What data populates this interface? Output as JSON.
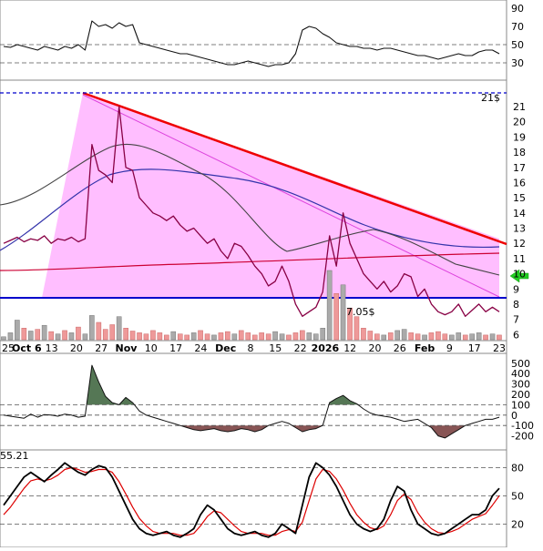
{
  "chart_data": [
    {
      "type": "line",
      "panel": "rsi",
      "y_ticks": [
        "90",
        "70",
        "50",
        "30"
      ],
      "ylim": [
        15,
        95
      ],
      "reference_lines": [
        50,
        30
      ],
      "series": [
        {
          "values": [
            48,
            47,
            50,
            48,
            46,
            44,
            48,
            46,
            44,
            48,
            46,
            50,
            44,
            76,
            70,
            72,
            68,
            74,
            70,
            72,
            52,
            50,
            48,
            46,
            44,
            42,
            40,
            40,
            38,
            36,
            34,
            32,
            30,
            28,
            28,
            30,
            32,
            30,
            28,
            26,
            28,
            28,
            30,
            40,
            66,
            70,
            68,
            62,
            58,
            52,
            50,
            48,
            48,
            46,
            46,
            44,
            46,
            46,
            44,
            42,
            40,
            38,
            38,
            36,
            34,
            36,
            38,
            40,
            38,
            38,
            42,
            44,
            44,
            40
          ]
        }
      ]
    },
    {
      "type": "line",
      "panel": "price",
      "y_ticks": [
        "21",
        "20",
        "19",
        "18",
        "17",
        "16",
        "15",
        "14",
        "13",
        "12",
        "11",
        "10",
        "9",
        "8",
        "7",
        "6"
      ],
      "ylim": [
        5,
        22.5
      ],
      "annotations": [
        {
          "text": "21$",
          "value": 21
        },
        {
          "text": "7.05$",
          "value": 7.05
        }
      ],
      "x_ticks": [
        "25",
        "Oct 6",
        "13",
        "20",
        "27",
        "Nov",
        "10",
        "17",
        "24",
        "Dec",
        "8",
        "15",
        "22",
        "2026",
        "12",
        "20",
        "26",
        "Feb",
        "9",
        "17",
        "23"
      ],
      "series": [
        {
          "values": [
            12.0,
            12.2,
            12.4,
            12.1,
            12.3,
            12.2,
            12.5,
            12.0,
            12.3,
            12.2,
            12.4,
            12.1,
            12.3,
            18.5,
            16.8,
            16.5,
            16.0,
            21.0,
            17.0,
            16.8,
            15.0,
            14.5,
            14.0,
            13.8,
            13.5,
            13.8,
            13.2,
            12.8,
            13.0,
            12.5,
            12.0,
            12.3,
            11.5,
            11.0,
            12.0,
            11.8,
            11.2,
            10.5,
            10.0,
            9.2,
            9.5,
            10.5,
            9.5,
            8.0,
            7.2,
            7.5,
            7.8,
            8.8,
            12.5,
            10.5,
            14.0,
            12.0,
            11.0,
            10.0,
            9.5,
            9.0,
            9.5,
            8.8,
            9.2,
            10.0,
            9.8,
            8.5,
            9.0,
            8.0,
            7.5,
            7.3,
            7.5,
            8.0,
            7.2,
            7.6,
            8.0,
            7.5,
            7.8,
            7.5
          ]
        }
      ]
    },
    {
      "type": "bar",
      "panel": "volume",
      "series": [
        {
          "values": [
            0.5,
            1.2,
            3.4,
            2.0,
            1.5,
            1.8,
            2.5,
            1.4,
            1.0,
            1.6,
            1.2,
            2.2,
            1.0,
            4.2,
            3.0,
            1.8,
            2.6,
            4.0,
            2.0,
            1.5,
            1.2,
            1.0,
            1.6,
            1.2,
            0.8,
            1.4,
            1.0,
            0.8,
            1.2,
            1.6,
            1.0,
            0.8,
            1.2,
            1.4,
            1.0,
            1.6,
            1.2,
            0.8,
            1.2,
            1.0,
            1.4,
            1.0,
            0.8,
            1.2,
            1.6,
            1.2,
            1.0,
            2.0,
            12.0,
            8.0,
            9.5,
            5.5,
            4.0,
            2.0,
            1.5,
            1.0,
            0.8,
            1.2,
            1.6,
            1.8,
            1.2,
            1.0,
            0.8,
            1.2,
            1.4,
            1.0,
            0.8,
            1.2,
            0.8,
            1.0,
            1.2,
            0.8,
            1.0,
            0.8
          ]
        }
      ]
    },
    {
      "type": "area",
      "panel": "cci",
      "y_ticks": [
        "500",
        "400",
        "300",
        "200",
        "100",
        "0",
        "-100",
        "-200"
      ],
      "ylim": [
        -300,
        560
      ],
      "reference_lines": [
        100,
        0,
        -100
      ],
      "series": [
        {
          "values": [
            0,
            -10,
            -20,
            -30,
            10,
            -20,
            5,
            0,
            -10,
            10,
            0,
            -20,
            -10,
            480,
            320,
            180,
            120,
            100,
            170,
            120,
            40,
            0,
            -20,
            -40,
            -60,
            -80,
            -100,
            -120,
            -140,
            -150,
            -140,
            -130,
            -150,
            -160,
            -150,
            -130,
            -140,
            -160,
            -140,
            -100,
            -80,
            -60,
            -80,
            -120,
            -160,
            -140,
            -130,
            -100,
            120,
            160,
            190,
            140,
            110,
            60,
            20,
            0,
            -10,
            -20,
            -40,
            -60,
            -50,
            -40,
            -80,
            -120,
            -200,
            -220,
            -180,
            -140,
            -100,
            -80,
            -60,
            -40,
            -40,
            -20
          ]
        }
      ]
    },
    {
      "type": "line",
      "panel": "stochastic",
      "annotations": [
        {
          "text": "55.21",
          "value": 55.21
        }
      ],
      "y_ticks": [
        "80",
        "50",
        "20"
      ],
      "ylim": [
        0,
        95
      ],
      "reference_lines": [
        80,
        50,
        20
      ],
      "series": [
        {
          "values": [
            40,
            50,
            60,
            70,
            75,
            70,
            65,
            72,
            78,
            85,
            80,
            75,
            72,
            78,
            82,
            80,
            70,
            55,
            40,
            25,
            15,
            10,
            8,
            10,
            12,
            8,
            6,
            10,
            15,
            30,
            40,
            35,
            25,
            15,
            10,
            8,
            10,
            12,
            8,
            6,
            10,
            20,
            15,
            10,
            40,
            70,
            85,
            80,
            72,
            60,
            45,
            30,
            20,
            15,
            12,
            15,
            25,
            45,
            60,
            55,
            35,
            20,
            15,
            10,
            8,
            10,
            15,
            20,
            25,
            30,
            30,
            35,
            50,
            58
          ]
        },
        {
          "values": [
            30,
            38,
            48,
            58,
            66,
            68,
            66,
            68,
            72,
            78,
            80,
            78,
            75,
            76,
            78,
            78,
            75,
            65,
            52,
            38,
            26,
            18,
            12,
            10,
            10,
            10,
            8,
            8,
            10,
            18,
            28,
            34,
            32,
            25,
            18,
            12,
            10,
            10,
            10,
            8,
            8,
            12,
            14,
            12,
            22,
            45,
            68,
            78,
            76,
            68,
            56,
            42,
            30,
            22,
            16,
            14,
            18,
            30,
            45,
            52,
            46,
            32,
            22,
            15,
            11,
            10,
            12,
            15,
            20,
            25,
            28,
            31,
            40,
            50
          ]
        }
      ]
    }
  ]
}
